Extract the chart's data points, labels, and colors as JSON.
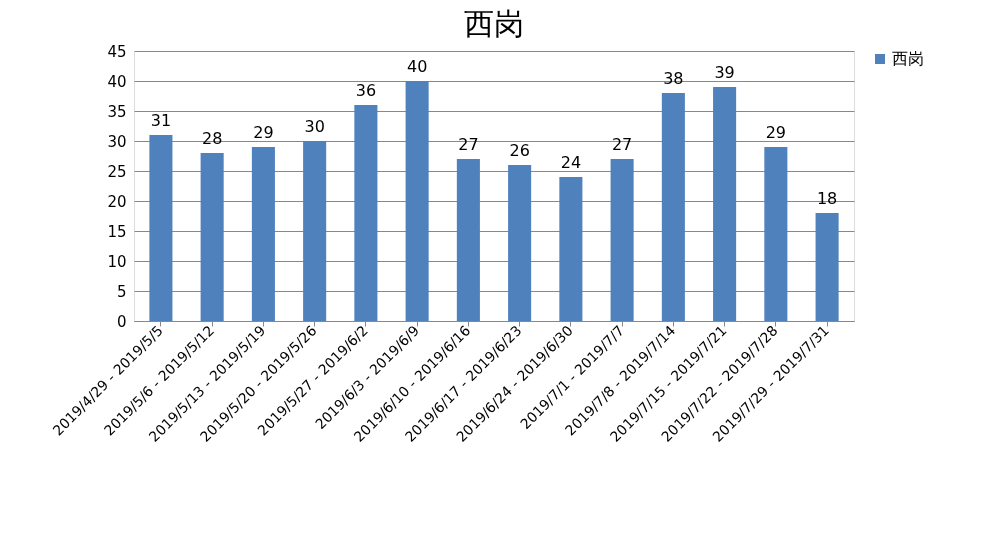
{
  "chart_data": {
    "type": "bar",
    "title": "西岗",
    "categories": [
      "2019/4/29 - 2019/5/5",
      "2019/5/6 - 2019/5/12",
      "2019/5/13 - 2019/5/19",
      "2019/5/20 - 2019/5/26",
      "2019/5/27 - 2019/6/2",
      "2019/6/3 - 2019/6/9",
      "2019/6/10 - 2019/6/16",
      "2019/6/17 - 2019/6/23",
      "2019/6/24 - 2019/6/30",
      "2019/7/1 - 2019/7/7",
      "2019/7/8 - 2019/7/14",
      "2019/7/15 - 2019/7/21",
      "2019/7/22 - 2019/7/28",
      "2019/7/29 - 2019/7/31"
    ],
    "series": [
      {
        "name": "西岗",
        "color": "#4f81bd",
        "values": [
          31,
          28,
          29,
          30,
          36,
          40,
          27,
          26,
          24,
          27,
          38,
          39,
          29,
          18
        ]
      }
    ],
    "ylim": [
      0,
      45
    ],
    "yticks": [
      0,
      5,
      10,
      15,
      20,
      25,
      30,
      35,
      40,
      45
    ],
    "grid": "y",
    "legend": "right",
    "data_labels": true
  }
}
